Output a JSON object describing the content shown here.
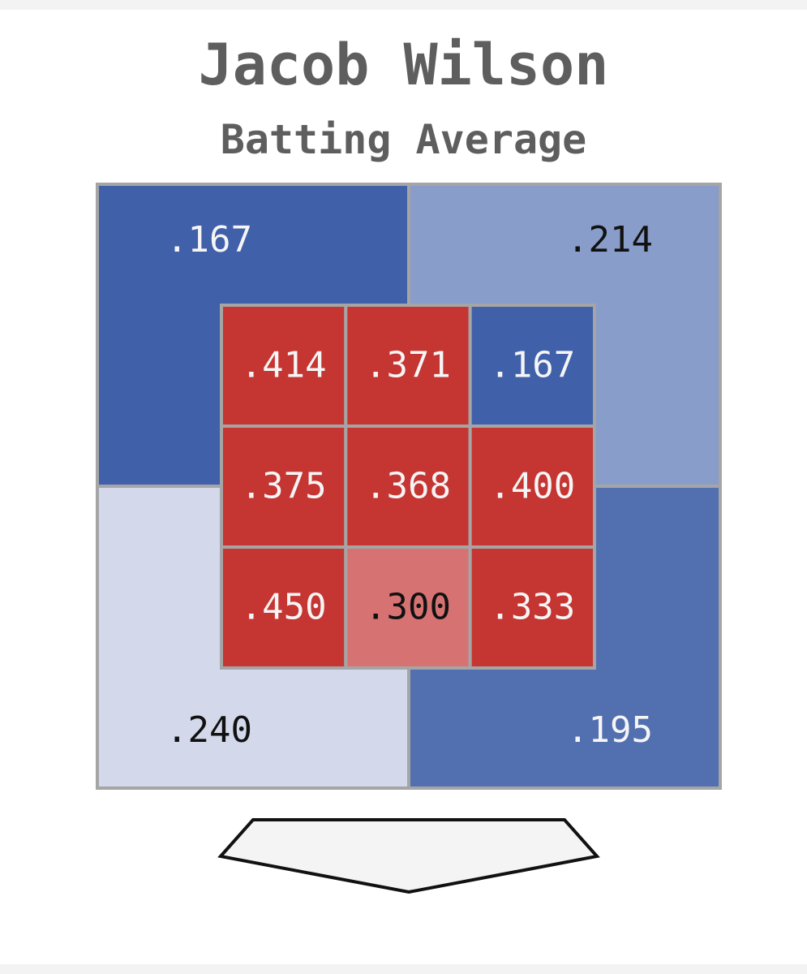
{
  "header": {
    "title": "Jacob Wilson",
    "subtitle": "Batting Average"
  },
  "chart_data": {
    "type": "heatmap",
    "title": "Jacob Wilson",
    "subtitle": "Batting Average",
    "metric": "Batting Average",
    "inner_zones": [
      [
        ".414",
        ".371",
        ".167"
      ],
      [
        ".375",
        ".368",
        ".400"
      ],
      [
        ".450",
        ".300",
        ".333"
      ]
    ],
    "outer_zones": {
      "top_left": ".167",
      "top_right": ".214",
      "bottom_left": ".240",
      "bottom_right": ".195"
    },
    "colors": {
      "hot": "#c53532",
      "warm": "#d77272",
      "cold": "#4060aa",
      "cool_medium": "#526fb0",
      "cool_light": "#889dc9",
      "neutral_light": "#d3d9ea",
      "grid_line": "#a5a5a5",
      "text_dark": "#111111",
      "text_light": "#f5f5f5",
      "home_plate_fill": "#f4f4f4"
    }
  }
}
